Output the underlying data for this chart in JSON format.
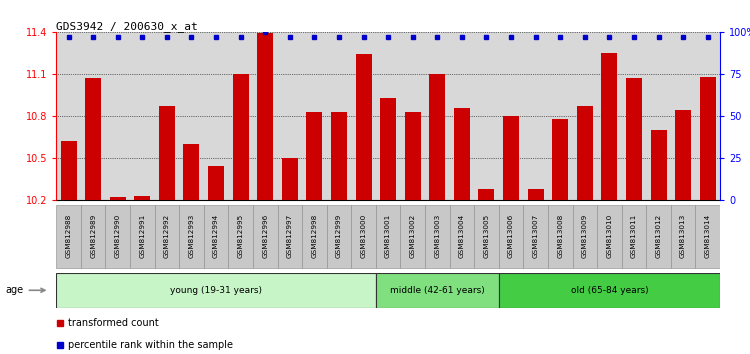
{
  "title": "GDS3942 / 200630_x_at",
  "samples": [
    "GSM812988",
    "GSM812989",
    "GSM812990",
    "GSM812991",
    "GSM812992",
    "GSM812993",
    "GSM812994",
    "GSM812995",
    "GSM812996",
    "GSM812997",
    "GSM812998",
    "GSM812999",
    "GSM813000",
    "GSM813001",
    "GSM813002",
    "GSM813003",
    "GSM813004",
    "GSM813005",
    "GSM813006",
    "GSM813007",
    "GSM813008",
    "GSM813009",
    "GSM813010",
    "GSM813011",
    "GSM813012",
    "GSM813013",
    "GSM813014"
  ],
  "red_values": [
    10.62,
    11.07,
    10.22,
    10.23,
    10.87,
    10.6,
    10.44,
    11.1,
    11.39,
    10.5,
    10.83,
    10.83,
    11.24,
    10.93,
    10.83,
    11.1,
    10.86,
    10.28,
    10.8,
    10.28,
    10.78,
    10.87,
    11.25,
    11.07,
    10.7,
    10.84,
    11.08
  ],
  "blue_values": [
    97,
    97,
    97,
    97,
    97,
    97,
    97,
    97,
    100,
    97,
    97,
    97,
    97,
    97,
    97,
    97,
    97,
    97,
    97,
    97,
    97,
    97,
    97,
    97,
    97,
    97,
    97
  ],
  "ylim_left": [
    10.2,
    11.4
  ],
  "ylim_right": [
    0,
    100
  ],
  "yticks_left": [
    10.2,
    10.5,
    10.8,
    11.1,
    11.4
  ],
  "yticks_right": [
    0,
    25,
    50,
    75,
    100
  ],
  "ytick_labels_right": [
    "0",
    "25",
    "50",
    "75",
    "100%"
  ],
  "groups": [
    {
      "label": "young (19-31 years)",
      "start": 0,
      "end": 13,
      "color": "#c8f5c8"
    },
    {
      "label": "middle (42-61 years)",
      "start": 13,
      "end": 18,
      "color": "#80e080"
    },
    {
      "label": "old (65-84 years)",
      "start": 18,
      "end": 27,
      "color": "#44cc44"
    }
  ],
  "bar_color": "#cc0000",
  "dot_color": "#0000cc",
  "bg_color": "#d8d8d8",
  "tick_bg_color": "#c8c8c8",
  "legend_red_label": "transformed count",
  "legend_blue_label": "percentile rank within the sample",
  "age_label": "age",
  "bar_width": 0.65,
  "bar_baseline": 10.2
}
